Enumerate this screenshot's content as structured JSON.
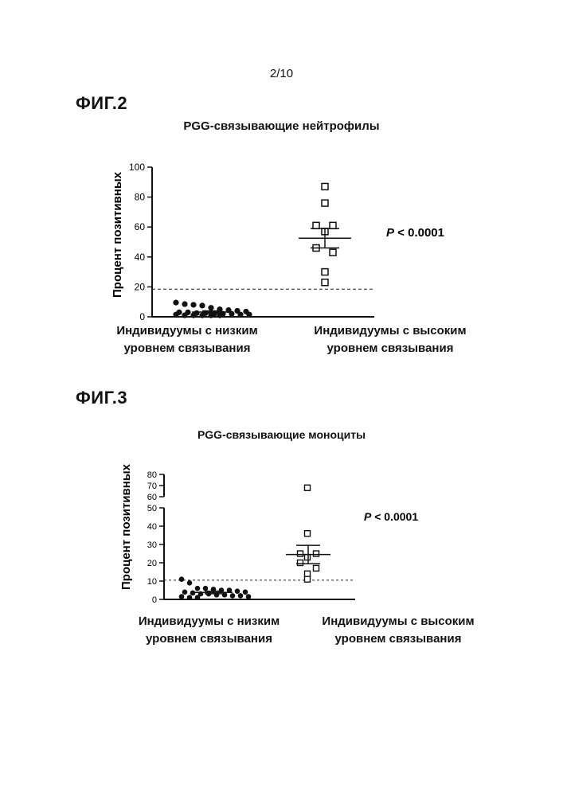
{
  "page_number": "2/10",
  "figures": [
    {
      "label": "ФИГ.2",
      "title": "PGG-связывающие нейтрофилы",
      "p_value_prefix": "P",
      "p_value_rest": " < 0.0001",
      "categories": [
        {
          "line1": "Индивидуумы с низким",
          "line2": "уровнем связывания"
        },
        {
          "line1": "Индивидуумы с высоким",
          "line2": "уровнем связывания"
        }
      ]
    },
    {
      "label": "ФИГ.3",
      "title": "PGG-связывающие моноциты",
      "p_value_prefix": "P",
      "p_value_rest": " < 0.0001",
      "categories": [
        {
          "line1": "Индивидуумы с низким",
          "line2": "уровнем связывания"
        },
        {
          "line1": "Индивидуумы с высоким",
          "line2": "уровнем связывания"
        }
      ]
    }
  ],
  "chart_data": [
    {
      "type": "scatter",
      "title": "PGG-связывающие нейтрофилы",
      "ylabel": "Процент позитивных",
      "ylim": [
        0,
        100
      ],
      "yticks": [
        0,
        20,
        40,
        60,
        80,
        100
      ],
      "threshold": 18.5,
      "categories": [
        "Индивидуумы с низким уровнем связывания",
        "Индивидуумы с высоким уровнем связывания"
      ],
      "groups": [
        {
          "marker": "filled-circle",
          "values": [
            9.5,
            8.5,
            8,
            7.5,
            6,
            5,
            4.5,
            4,
            3.5,
            3,
            3,
            2.5,
            2.5,
            2,
            2,
            2,
            1.5,
            1.5,
            1.5,
            1,
            1,
            1,
            1,
            1
          ],
          "mean": 3.2,
          "sem_low": 2.5,
          "sem_high": 3.9
        },
        {
          "marker": "open-square",
          "values": [
            87,
            76,
            61,
            61,
            57,
            46,
            43,
            30,
            23
          ],
          "mean": 52.5,
          "sem_low": 46,
          "sem_high": 59
        }
      ],
      "annotation": "P < 0.0001"
    },
    {
      "type": "scatter",
      "title": "PGG-связывающие моноциты",
      "ylabel": "Процент позитивных",
      "ylim": [
        0,
        80
      ],
      "axis_break": [
        50,
        60
      ],
      "yticks": [
        0,
        10,
        20,
        30,
        40,
        50,
        60,
        70,
        80
      ],
      "threshold": 10.5,
      "categories": [
        "Индивидуумы с низким уровнем связывания",
        "Индивидуумы с высоким уровнем связывания"
      ],
      "groups": [
        {
          "marker": "filled-circle",
          "values": [
            11,
            9,
            6,
            6,
            5.5,
            5,
            5,
            4.5,
            4,
            4,
            3.5,
            3,
            3,
            2.5,
            2.5,
            2,
            2,
            1.5,
            1.5,
            1,
            1
          ],
          "mean": 3.8,
          "sem_low": 3.1,
          "sem_high": 4.5
        },
        {
          "marker": "open-square",
          "values": [
            68,
            36,
            25,
            25,
            23,
            20,
            17,
            14,
            11
          ],
          "mean": 24.5,
          "sem_low": 19.5,
          "sem_high": 29.5
        }
      ],
      "annotation": "P < 0.0001"
    }
  ]
}
